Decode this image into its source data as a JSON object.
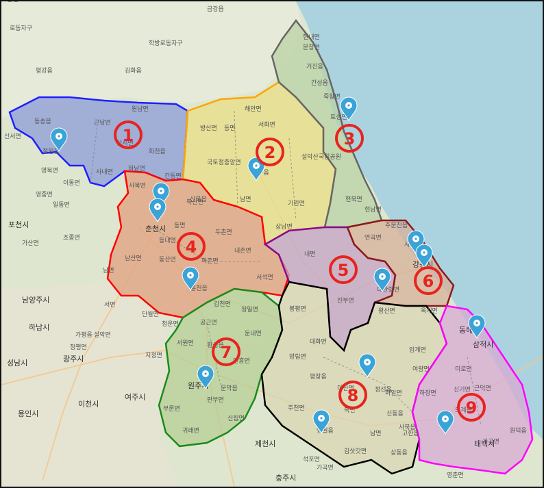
{
  "colors": {
    "sea": "#aad3df",
    "land": "#dfe6cf",
    "region_marker": "#e8231e",
    "pin": "#3aa3d7"
  },
  "regions": [
    {
      "number": "①",
      "color": "#1f1fff",
      "fill": "#8c9bd8"
    },
    {
      "number": "②",
      "color": "#ffa500",
      "fill": "#e8dd86"
    },
    {
      "number": "③",
      "color": "#555555",
      "fill": "#b9d1a5"
    },
    {
      "number": "④",
      "color": "#ff0000",
      "fill": "#e0a07f"
    },
    {
      "number": "⑤",
      "color": "#8b0a8b",
      "fill": "#c6a7c4"
    },
    {
      "number": "⑥",
      "color": "#8b1a1a",
      "fill": "#d7b09b"
    },
    {
      "number": "⑦",
      "color": "#1a8a1a",
      "fill": "#b6cd96"
    },
    {
      "number": "⑧",
      "color": "#000000",
      "fill": "#d9d6b4"
    },
    {
      "number": "⑨",
      "color": "#ff00ff",
      "fill": "#d8a9d4"
    }
  ],
  "labels": [
    "금강읍",
    "로동자구",
    "학방로동자구",
    "김화읍",
    "평강읍",
    "문창면",
    "거진읍",
    "현내면",
    "간성읍",
    "죽왕면",
    "토성면",
    "동송읍",
    "근남면",
    "원남면",
    "신서면",
    "철원읍",
    "상서면",
    "화천읍",
    "영북면",
    "사내면",
    "하남면",
    "간동면",
    "이동면",
    "영중면",
    "해안면",
    "방산면",
    "동면",
    "서화면",
    "양구읍",
    "국토정중앙면",
    "남면",
    "기린면",
    "설악산국립공원",
    "현북면",
    "현남면",
    "북산면",
    "상남면",
    "사북면",
    "춘천시",
    "동면",
    "동내면",
    "신북읍",
    "포천시",
    "가산면",
    "일동면",
    "조종면",
    "남산면",
    "동산면",
    "화촌면",
    "두촌면",
    "내촌면",
    "서석면",
    "홍천읍",
    "내면",
    "주문진읍",
    "연곡면",
    "강릉시",
    "사천면",
    "대관령면",
    "진부면",
    "왕산면",
    "옥계면",
    "동해시",
    "남양주시",
    "하남시",
    "광주시",
    "성남시",
    "용인시",
    "이천시",
    "여주시",
    "가평읍",
    "청평면",
    "설악면",
    "서면",
    "남면",
    "단월면",
    "청운면",
    "공근면",
    "갑천면",
    "청일면",
    "둔내면",
    "서원면",
    "횡성읍",
    "안흥면",
    "문막읍",
    "지정면",
    "부론면",
    "귀래면",
    "원주시",
    "신림면",
    "판부면",
    "봉평면",
    "대화면",
    "방림면",
    "평창읍",
    "미탄면",
    "주천면",
    "영월읍",
    "북면",
    "남면",
    "정선읍",
    "화암면",
    "임계면",
    "여량면",
    "신동읍",
    "사북읍",
    "고한읍",
    "태백시",
    "삼척시",
    "미로면",
    "하장면",
    "신기면",
    "근덕면",
    "도계읍",
    "원덕읍",
    "가곡면",
    "김삿갓면",
    "상동읍",
    "제천시",
    "충주시",
    "영춘면",
    "석포면",
    "가곡면",
    "노동면"
  ]
}
